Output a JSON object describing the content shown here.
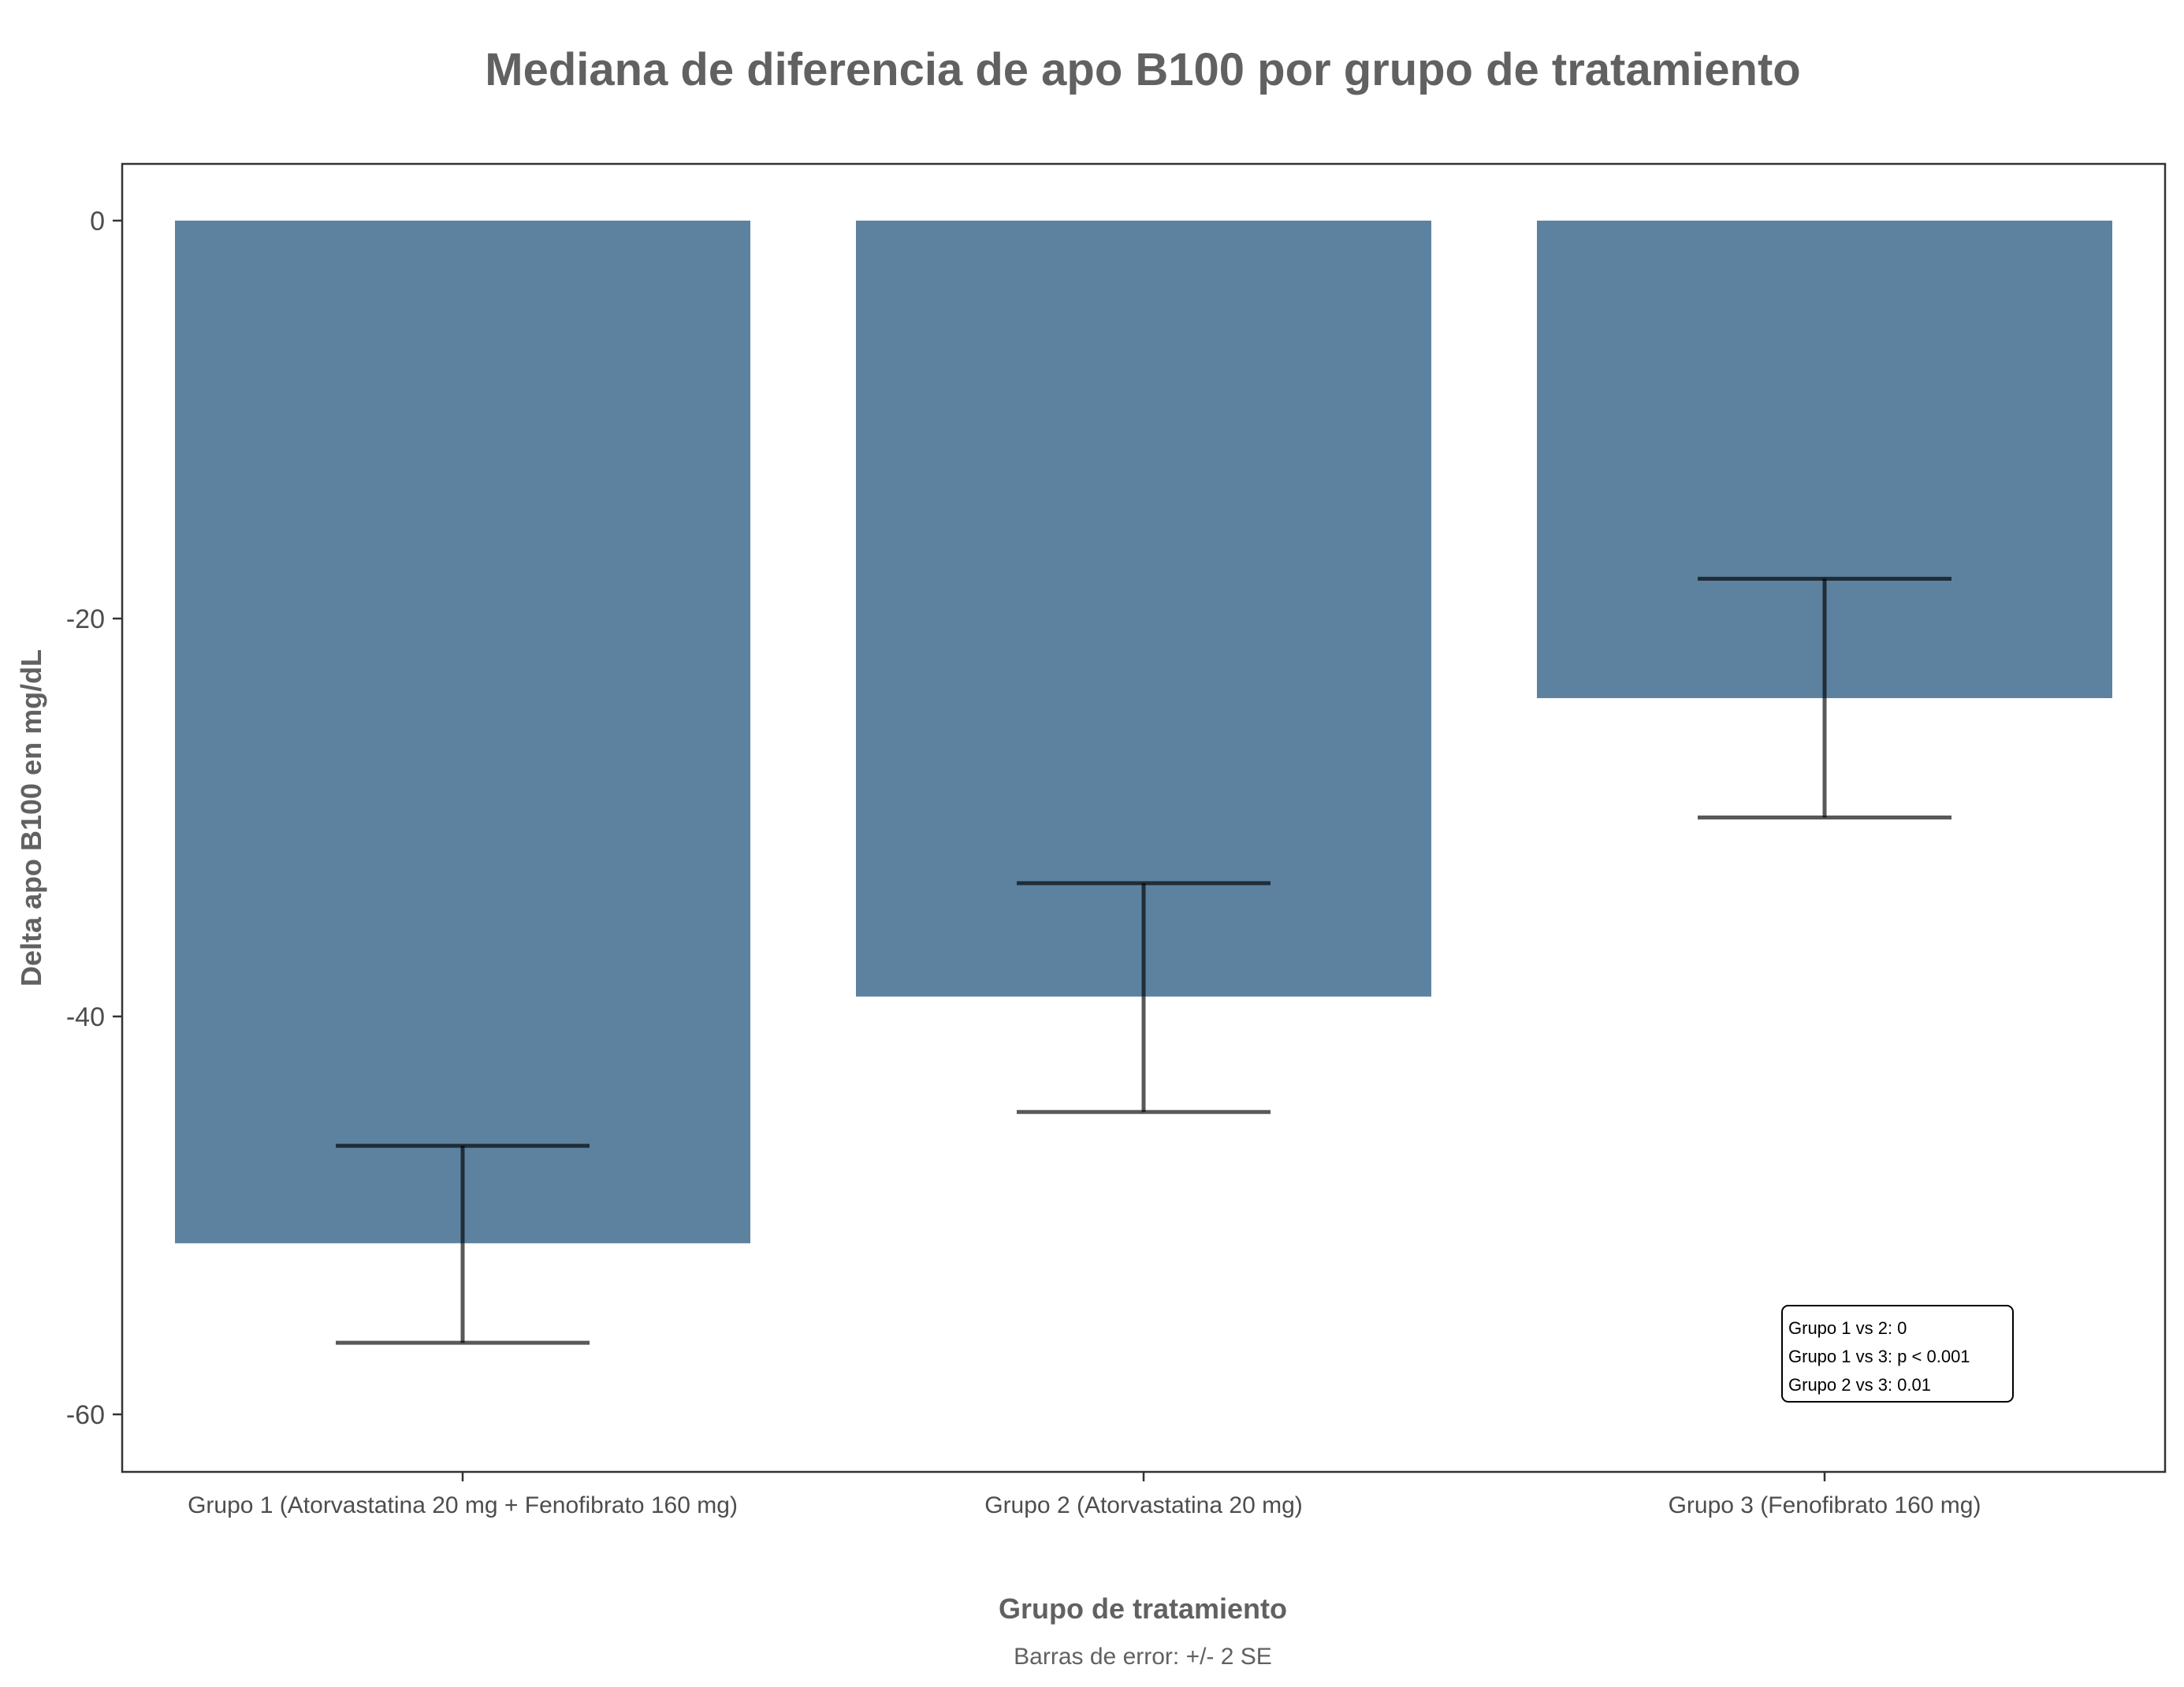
{
  "chart_data": {
    "type": "bar",
    "title": "Mediana de diferencia de apo B100 por grupo de tratamiento",
    "xlabel": "Grupo de tratamiento",
    "ylabel": "Delta apo B100 en mg/dL",
    "caption": "Barras de error: +/- 2 SE",
    "categories": [
      "Grupo 1 (Atorvastatina 20 mg + Fenofibrato 160 mg)",
      "Grupo 2 (Atorvastatina 20 mg)",
      "Grupo 3 (Fenofibrato 160 mg)"
    ],
    "values": [
      -51.4,
      -39.0,
      -24.0
    ],
    "error_low": [
      -56.4,
      -44.8,
      -30.0
    ],
    "error_high": [
      -46.5,
      -33.3,
      -18.0
    ],
    "ylim": [
      -63,
      3
    ],
    "yticks": [
      0,
      -20,
      -40,
      -60
    ],
    "ytick_labels": [
      "0",
      "-20",
      "-40",
      "-60"
    ],
    "grid": false,
    "annotation": {
      "lines": [
        "Grupo 1 vs 2: 0",
        "Grupo 1 vs 3: p < 0.001",
        "Grupo 2 vs 3: 0.01"
      ],
      "placement": "bottom-right"
    },
    "colors": {
      "bar": "#5d82a0",
      "errorbar": "#000000",
      "text": "#616161",
      "axis": "#333333"
    }
  }
}
